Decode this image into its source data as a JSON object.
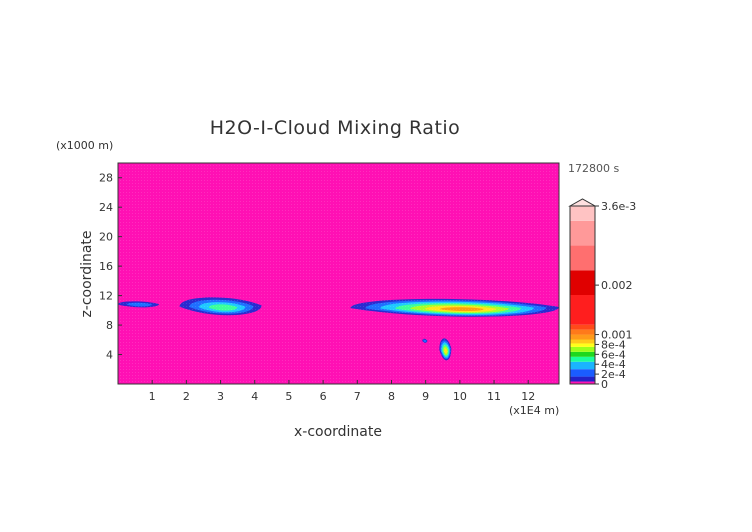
{
  "chart_data": {
    "type": "heatmap",
    "title": "H2O-I-Cloud Mixing Ratio",
    "xlabel": "x-coordinate",
    "ylabel": "z-coordinate",
    "x_unit": "(x1E4 m)",
    "y_unit": "(x1000 m)",
    "time_label": "172800 s",
    "xlim": [
      0,
      12.9
    ],
    "ylim": [
      0,
      30
    ],
    "x_ticks": [
      1,
      2,
      3,
      4,
      5,
      6,
      7,
      8,
      9,
      10,
      11,
      12
    ],
    "y_ticks": [
      4,
      8,
      12,
      16,
      20,
      24,
      28
    ],
    "background_value": 0,
    "colorbar": {
      "max_label": "3.6e-3",
      "labels": [
        {
          "value": 0,
          "text": "0"
        },
        {
          "value": 0.0002,
          "text": "2e-4"
        },
        {
          "value": 0.0004,
          "text": "4e-4"
        },
        {
          "value": 0.0006,
          "text": "6e-4"
        },
        {
          "value": 0.0008,
          "text": "8e-4"
        },
        {
          "value": 0.001,
          "text": "0.001"
        },
        {
          "value": 0.002,
          "text": "0.002"
        },
        {
          "value": 0.0036,
          "text": "3.6e-3"
        }
      ]
    },
    "features": [
      {
        "name": "cloud-layer-left",
        "x": [
          0.0,
          1.2
        ],
        "z": [
          10.3,
          11.3
        ],
        "peak": 0.0002
      },
      {
        "name": "cloud-blob-mid",
        "x": [
          1.8,
          4.2
        ],
        "z": [
          9.0,
          12.0
        ],
        "peak": 0.0005
      },
      {
        "name": "cloud-band-right",
        "x": [
          6.8,
          12.9
        ],
        "z": [
          8.8,
          11.8
        ],
        "peak": 0.0009
      },
      {
        "name": "cloud-column",
        "x": [
          9.4,
          9.75
        ],
        "z": [
          2.8,
          6.5
        ],
        "peak": 0.0008
      },
      {
        "name": "cloud-speck",
        "x": [
          8.9,
          9.05
        ],
        "z": [
          5.5,
          6.2
        ],
        "peak": 0.0002
      }
    ]
  },
  "colors": {
    "background": "#ff10b4",
    "cloud_levels": [
      "#2b2bd0",
      "#1f6fff",
      "#1fc9ff",
      "#3cff9a",
      "#a6ff2a",
      "#ffe51a",
      "#ff9d10"
    ],
    "colorbar_levels": [
      "#ff14b4",
      "#2222c8",
      "#1a5cff",
      "#1ab4ff",
      "#1aff9c",
      "#1ed81e",
      "#9cff1a",
      "#ffff1a",
      "#ffc81a",
      "#ff9a1a",
      "#ff7a1a",
      "#ff4a1a",
      "#ff1e1e",
      "#e00000",
      "#ff6f6f",
      "#ff9999",
      "#ffc3c3"
    ]
  }
}
